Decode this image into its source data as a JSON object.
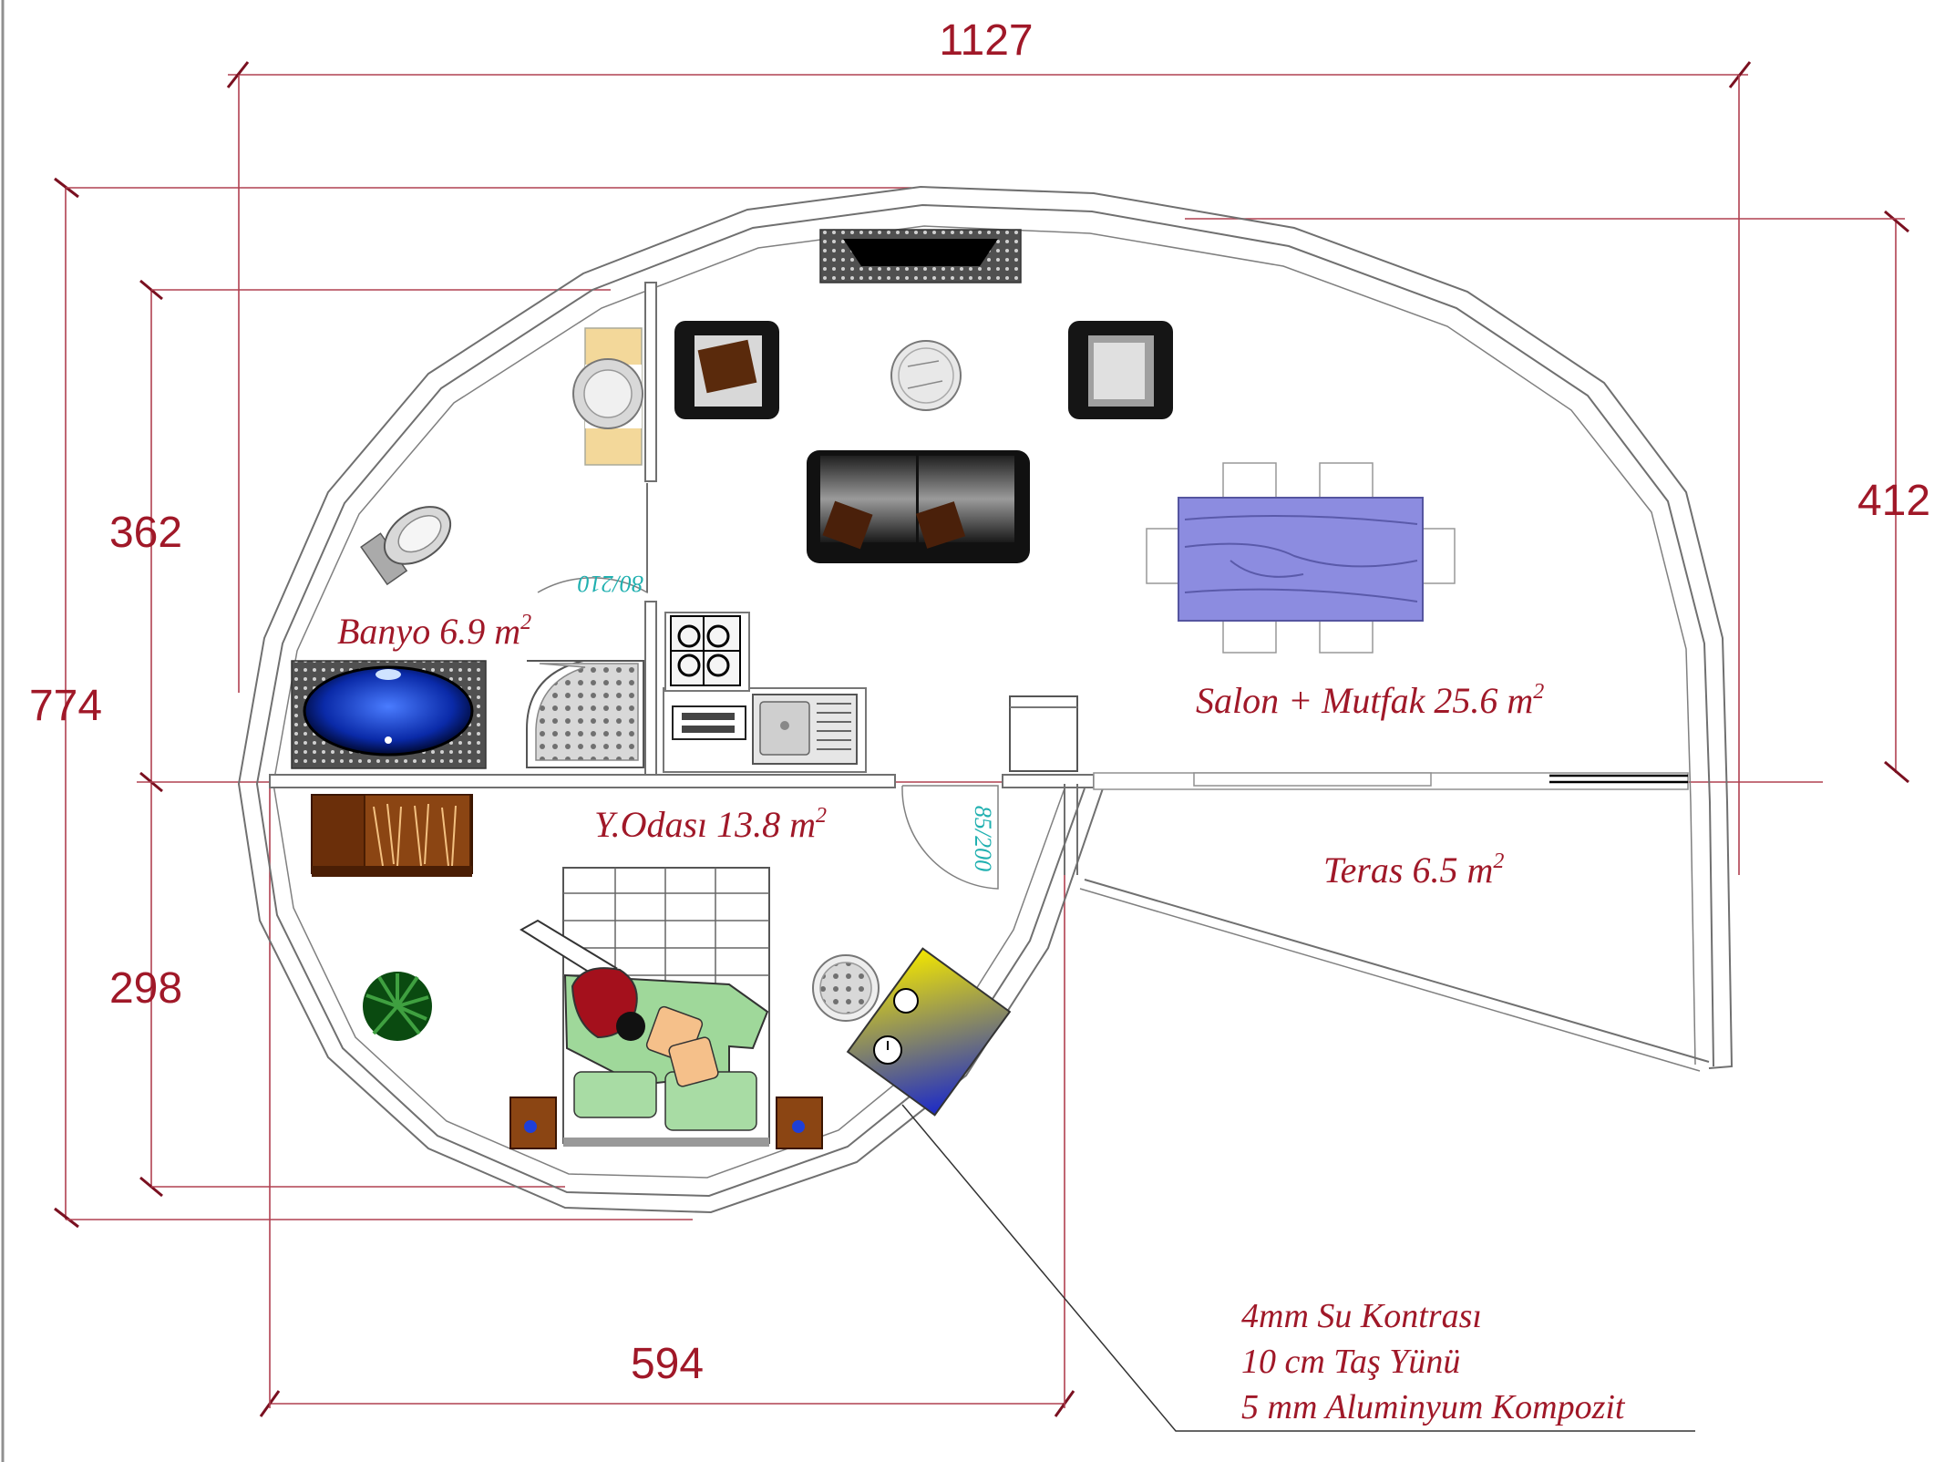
{
  "dimensions": {
    "top_width": "1127",
    "left_total": "774",
    "left_upper": "362",
    "left_lower": "298",
    "right_height": "412",
    "bottom_width": "594"
  },
  "rooms": {
    "banyo": {
      "name": "Banyo  6.9 m",
      "exp": "2"
    },
    "salon": {
      "name": "Salon + Mutfak 25.6 m",
      "exp": "2"
    },
    "yatak": {
      "name": "Y.Odası 13.8 m",
      "exp": "2"
    },
    "teras": {
      "name": "Teras 6.5 m",
      "exp": "2"
    }
  },
  "doors": {
    "bath_door": "80/210",
    "bed_door": "85/200"
  },
  "wall_notes": [
    "4mm Su Kontrası",
    "10 cm Taş Yünü",
    "5 mm Aluminyum Kompozit"
  ],
  "colors": {
    "label": "#a01828",
    "door_label": "#20b0b0",
    "dimension_line": "#b04050"
  }
}
